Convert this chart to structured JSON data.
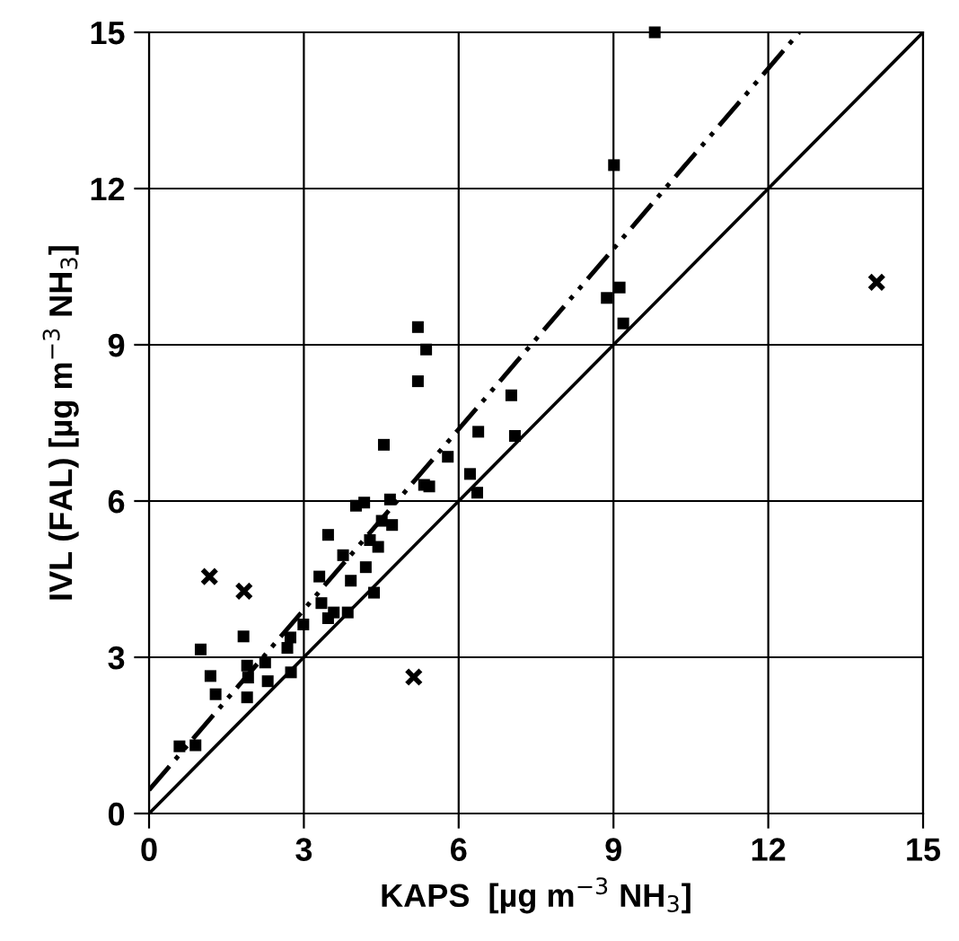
{
  "chart_data": {
    "type": "scatter",
    "xlabel": "KAPS  [µg m$^{−3}$ NH$_{3}$]",
    "ylabel": "IVL (FAL) [µg m$^{−3}$ NH$_{3}$]",
    "xlim": [
      0,
      15
    ],
    "ylim": [
      0,
      15
    ],
    "xticks": [
      0,
      3,
      6,
      9,
      12,
      15
    ],
    "yticks": [
      0,
      3,
      6,
      9,
      12,
      15
    ],
    "grid": true,
    "legend": false,
    "series": [
      {
        "marker": "square",
        "color": "#000000",
        "x": [
          0.59,
          0.9,
          1.0,
          1.19,
          1.29,
          1.83,
          1.9,
          1.92,
          1.9,
          2.25,
          2.3,
          2.68,
          2.74,
          2.75,
          2.99,
          3.3,
          3.34,
          3.47,
          3.58,
          3.85,
          3.47,
          3.91,
          3.76,
          4.2,
          4.36,
          4.01,
          4.17,
          4.28,
          4.44,
          4.51,
          4.71,
          4.67,
          4.55,
          5.33,
          5.43,
          5.79,
          6.22,
          6.36,
          6.38,
          7.02,
          7.09,
          5.21,
          5.37,
          5.21,
          8.87,
          9.12,
          9.19,
          9.01,
          9.8
        ],
        "values": [
          1.29,
          1.31,
          3.15,
          2.64,
          2.29,
          3.4,
          2.84,
          2.61,
          2.23,
          2.9,
          2.54,
          3.18,
          3.38,
          2.71,
          3.63,
          4.55,
          4.04,
          3.75,
          3.86,
          3.86,
          5.35,
          4.47,
          4.96,
          4.73,
          4.24,
          5.91,
          5.97,
          5.25,
          5.12,
          5.62,
          5.54,
          6.03,
          7.08,
          6.31,
          6.28,
          6.85,
          6.52,
          6.16,
          7.33,
          8.03,
          7.25,
          8.3,
          8.91,
          9.34,
          9.9,
          10.1,
          9.41,
          12.45,
          15
        ]
      },
      {
        "marker": "cross",
        "color": "#000000",
        "x": [
          1.17,
          1.84,
          5.13,
          14.1
        ],
        "values": [
          4.55,
          4.27,
          2.62,
          10.2
        ]
      },
      {
        "type": "line",
        "line_style": "solid",
        "color": "#000000",
        "x": [
          0,
          15
        ],
        "values": [
          0,
          15
        ]
      },
      {
        "type": "line",
        "line_style": "dashed",
        "color": "#000000",
        "x": [
          0,
          12.6
        ],
        "values": [
          0.45,
          15
        ]
      }
    ]
  }
}
